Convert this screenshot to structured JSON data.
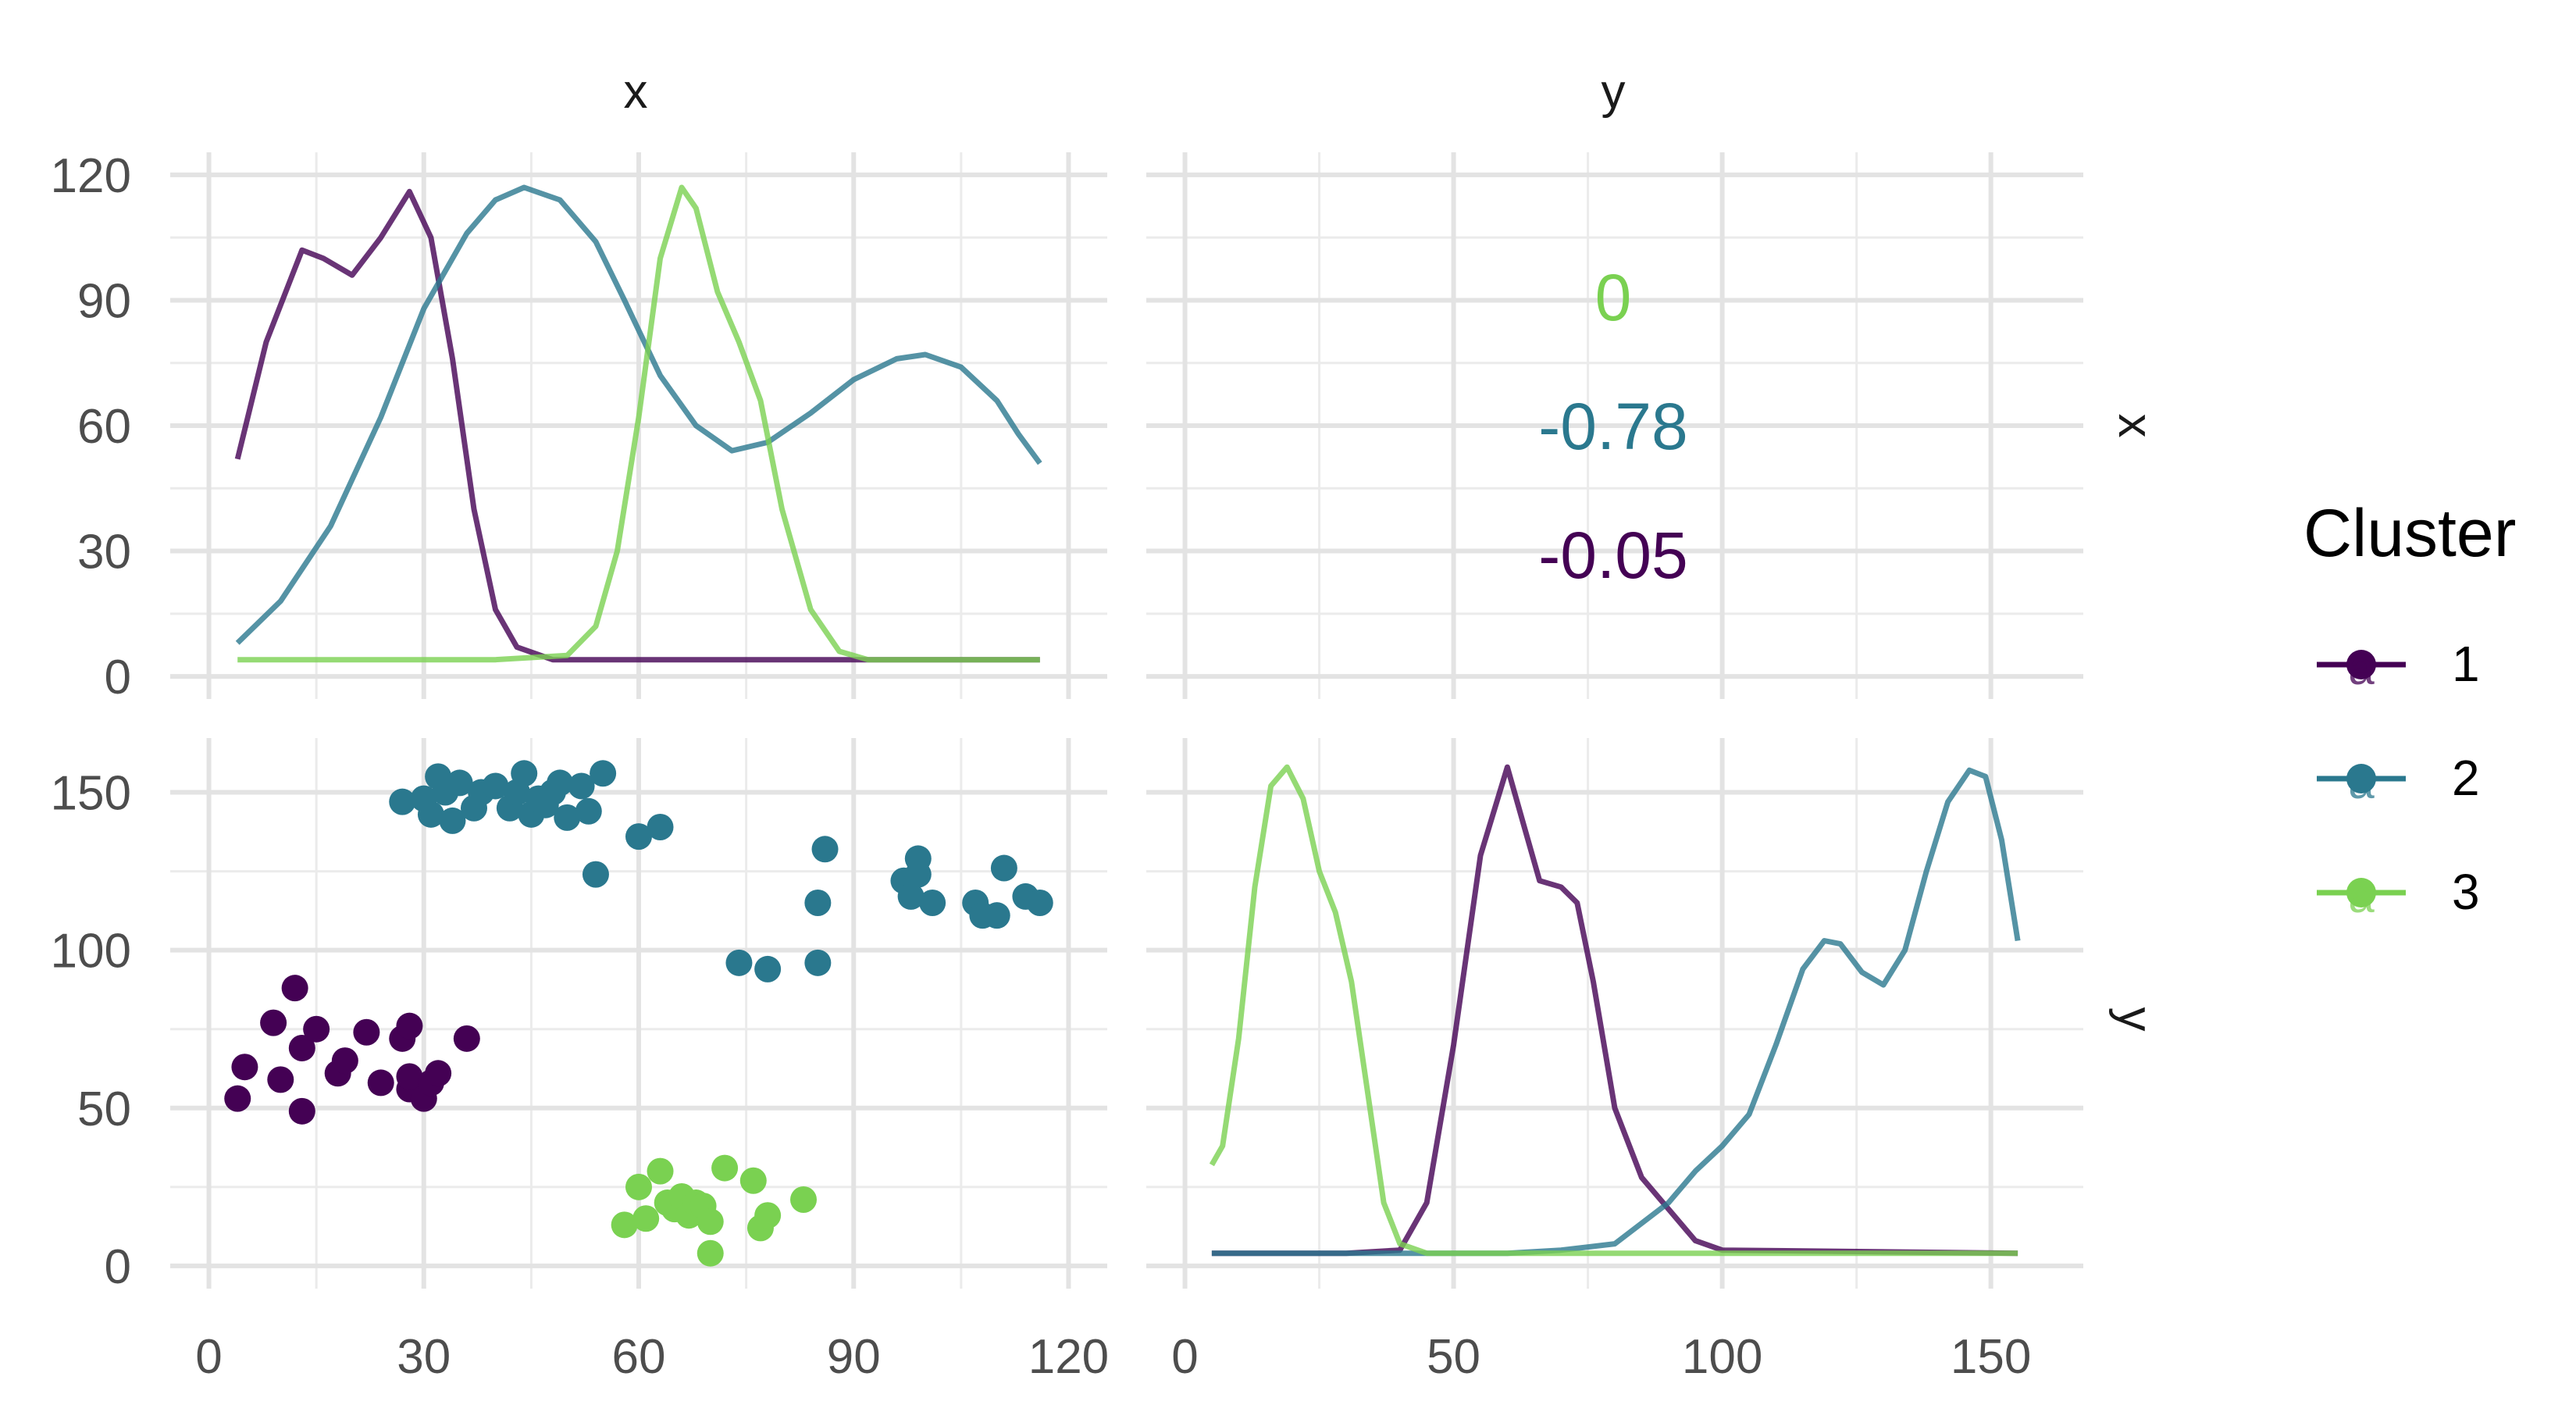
{
  "chart_data": {
    "type": "scatter",
    "layout": "pairs-matrix",
    "variables": [
      "x",
      "y"
    ],
    "strips": {
      "top": [
        "x",
        "y"
      ],
      "right": [
        "x",
        "y"
      ]
    },
    "axes": {
      "x": {
        "range": [
          0,
          120
        ],
        "ticks": [
          0,
          30,
          60,
          90,
          120
        ],
        "density_range": [
          0,
          120
        ],
        "density_ticks": [
          0,
          30,
          60,
          90,
          120
        ]
      },
      "y": {
        "range": [
          0,
          160
        ],
        "ticks": [
          0,
          50,
          100,
          150
        ]
      },
      "y_col_x": {
        "range": [
          0,
          160
        ],
        "ticks": [
          0,
          50,
          100,
          150
        ]
      }
    },
    "grid": true,
    "legend": {
      "title": "Cluster",
      "position": "right",
      "entries": [
        {
          "label": "1",
          "color": "#440154"
        },
        {
          "label": "2",
          "color": "#2A788E"
        },
        {
          "label": "3",
          "color": "#7AD151"
        }
      ]
    },
    "correlations": [
      {
        "cluster": "3",
        "text": "0",
        "color": "#7AD151"
      },
      {
        "cluster": "2",
        "text": "-0.78",
        "color": "#2A788E"
      },
      {
        "cluster": "1",
        "text": "-0.05",
        "color": "#440154"
      }
    ],
    "series": [
      {
        "name": "1",
        "color": "#440154",
        "points": [
          [
            4,
            53
          ],
          [
            5,
            63
          ],
          [
            9,
            77
          ],
          [
            10,
            59
          ],
          [
            12,
            88
          ],
          [
            13,
            69
          ],
          [
            13,
            49
          ],
          [
            15,
            75
          ],
          [
            18,
            61
          ],
          [
            19,
            65
          ],
          [
            22,
            74
          ],
          [
            24,
            58
          ],
          [
            27,
            72
          ],
          [
            28,
            56
          ],
          [
            28,
            76
          ],
          [
            28,
            60
          ],
          [
            30,
            53
          ],
          [
            31,
            58
          ],
          [
            32,
            61
          ],
          [
            36,
            72
          ]
        ],
        "density_x": [
          [
            4,
            52
          ],
          [
            8,
            80
          ],
          [
            13,
            102
          ],
          [
            16,
            100
          ],
          [
            20,
            96
          ],
          [
            24,
            105
          ],
          [
            28,
            116
          ],
          [
            31,
            105
          ],
          [
            34,
            76
          ],
          [
            37,
            40
          ],
          [
            40,
            16
          ],
          [
            43,
            7
          ],
          [
            48,
            4
          ],
          [
            60,
            4
          ],
          [
            90,
            4
          ],
          [
            116,
            4
          ]
        ],
        "density_y": [
          [
            5,
            4
          ],
          [
            30,
            4
          ],
          [
            40,
            5
          ],
          [
            45,
            20
          ],
          [
            50,
            70
          ],
          [
            55,
            130
          ],
          [
            60,
            158
          ],
          [
            63,
            140
          ],
          [
            66,
            122
          ],
          [
            70,
            120
          ],
          [
            73,
            115
          ],
          [
            76,
            90
          ],
          [
            80,
            50
          ],
          [
            85,
            28
          ],
          [
            90,
            18
          ],
          [
            95,
            8
          ],
          [
            100,
            5
          ],
          [
            155,
            4
          ]
        ]
      },
      {
        "name": "2",
        "color": "#2A788E",
        "points": [
          [
            27,
            147
          ],
          [
            30,
            148
          ],
          [
            31,
            143
          ],
          [
            32,
            155
          ],
          [
            33,
            150
          ],
          [
            34,
            141
          ],
          [
            35,
            153
          ],
          [
            37,
            145
          ],
          [
            38,
            150
          ],
          [
            40,
            152
          ],
          [
            42,
            145
          ],
          [
            43,
            150
          ],
          [
            44,
            156
          ],
          [
            45,
            143
          ],
          [
            46,
            148
          ],
          [
            47,
            146
          ],
          [
            48,
            150
          ],
          [
            49,
            153
          ],
          [
            50,
            142
          ],
          [
            52,
            152
          ],
          [
            53,
            144
          ],
          [
            54,
            124
          ],
          [
            55,
            156
          ],
          [
            60,
            136
          ],
          [
            63,
            139
          ],
          [
            74,
            96
          ],
          [
            78,
            94
          ],
          [
            85,
            96
          ],
          [
            85,
            115
          ],
          [
            86,
            132
          ],
          [
            97,
            122
          ],
          [
            98,
            117
          ],
          [
            99,
            129
          ],
          [
            99,
            124
          ],
          [
            101,
            115
          ],
          [
            107,
            115
          ],
          [
            108,
            111
          ],
          [
            110,
            111
          ],
          [
            111,
            126
          ],
          [
            114,
            117
          ],
          [
            116,
            115
          ]
        ],
        "density_x": [
          [
            4,
            8
          ],
          [
            10,
            18
          ],
          [
            17,
            36
          ],
          [
            24,
            62
          ],
          [
            30,
            88
          ],
          [
            36,
            106
          ],
          [
            40,
            114
          ],
          [
            44,
            117
          ],
          [
            49,
            114
          ],
          [
            54,
            104
          ],
          [
            58,
            90
          ],
          [
            63,
            72
          ],
          [
            68,
            60
          ],
          [
            73,
            54
          ],
          [
            78,
            56
          ],
          [
            84,
            63
          ],
          [
            90,
            71
          ],
          [
            96,
            76
          ],
          [
            100,
            77
          ],
          [
            105,
            74
          ],
          [
            110,
            66
          ],
          [
            113,
            58
          ],
          [
            116,
            51
          ]
        ],
        "density_y": [
          [
            5,
            4
          ],
          [
            60,
            4
          ],
          [
            70,
            5
          ],
          [
            80,
            7
          ],
          [
            90,
            20
          ],
          [
            95,
            30
          ],
          [
            100,
            38
          ],
          [
            105,
            48
          ],
          [
            110,
            70
          ],
          [
            115,
            94
          ],
          [
            119,
            103
          ],
          [
            122,
            102
          ],
          [
            126,
            93
          ],
          [
            130,
            89
          ],
          [
            134,
            100
          ],
          [
            138,
            125
          ],
          [
            142,
            147
          ],
          [
            146,
            157
          ],
          [
            149,
            155
          ],
          [
            152,
            135
          ],
          [
            155,
            103
          ]
        ]
      },
      {
        "name": "3",
        "color": "#7AD151",
        "points": [
          [
            58,
            13
          ],
          [
            60,
            25
          ],
          [
            61,
            15
          ],
          [
            63,
            30
          ],
          [
            64,
            20
          ],
          [
            65,
            18
          ],
          [
            66,
            22
          ],
          [
            67,
            16
          ],
          [
            68,
            20
          ],
          [
            69,
            19
          ],
          [
            70,
            14
          ],
          [
            70,
            4
          ],
          [
            72,
            31
          ],
          [
            76,
            27
          ],
          [
            77,
            12
          ],
          [
            78,
            16
          ],
          [
            83,
            21
          ]
        ],
        "density_x": [
          [
            4,
            4
          ],
          [
            40,
            4
          ],
          [
            50,
            5
          ],
          [
            54,
            12
          ],
          [
            57,
            30
          ],
          [
            60,
            62
          ],
          [
            63,
            100
          ],
          [
            66,
            117
          ],
          [
            68,
            112
          ],
          [
            71,
            92
          ],
          [
            74,
            80
          ],
          [
            77,
            66
          ],
          [
            80,
            40
          ],
          [
            84,
            16
          ],
          [
            88,
            6
          ],
          [
            92,
            4
          ],
          [
            116,
            4
          ]
        ],
        "density_y": [
          [
            5,
            32
          ],
          [
            7,
            38
          ],
          [
            10,
            72
          ],
          [
            13,
            120
          ],
          [
            16,
            152
          ],
          [
            19,
            158
          ],
          [
            22,
            148
          ],
          [
            25,
            125
          ],
          [
            28,
            112
          ],
          [
            31,
            90
          ],
          [
            34,
            55
          ],
          [
            37,
            20
          ],
          [
            40,
            7
          ],
          [
            45,
            4
          ],
          [
            155,
            4
          ]
        ]
      }
    ]
  }
}
